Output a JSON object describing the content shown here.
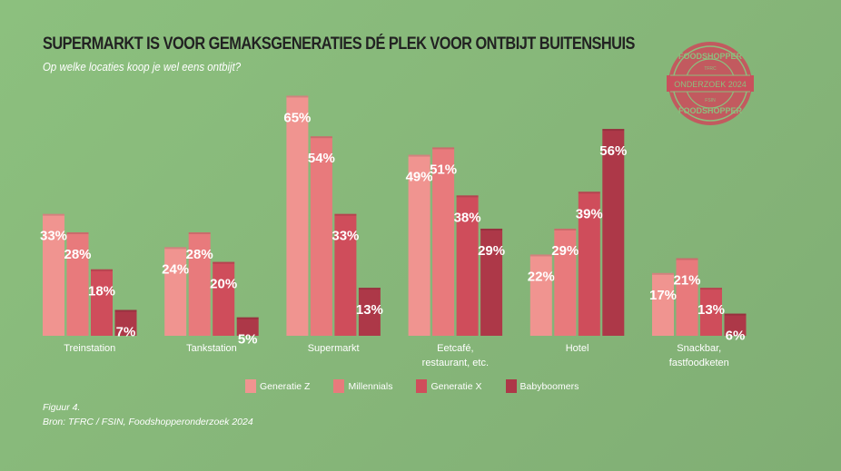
{
  "header": {
    "title": "SUPERMARKT IS VOOR GEMAKSGENERATIES DÉ PLEK VOOR ONTBIJT BUITENSHUIS",
    "subtitle": "Op welke locaties koop je wel eens ontbijt?"
  },
  "stamp": {
    "top": "FOODSHOPPER",
    "small_top": "TFRC",
    "middle": "ONDERZOEK 2024",
    "small_bottom": "FSIN",
    "bottom": "FOODSHOPPER"
  },
  "chart_data": {
    "type": "bar",
    "title": "SUPERMARKT IS VOOR GEMAKSGENERATIES DÉ PLEK VOOR ONTBIJT BUITENSHUIS",
    "categories": [
      [
        "Treinstation"
      ],
      [
        "Tankstation"
      ],
      [
        "Supermarkt"
      ],
      [
        "Eetcafé,",
        "restaurant, etc."
      ],
      [
        "Hotel"
      ],
      [
        "Snackbar,",
        "fastfoodketen"
      ]
    ],
    "series": [
      {
        "name": "Generatie Z",
        "color": "#f09490",
        "values": [
          33,
          24,
          65,
          49,
          22,
          17
        ]
      },
      {
        "name": "Millennials",
        "color": "#e87a7c",
        "values": [
          28,
          28,
          54,
          51,
          29,
          21
        ]
      },
      {
        "name": "Generatie X",
        "color": "#cf4d5b",
        "values": [
          18,
          20,
          33,
          38,
          39,
          13
        ]
      },
      {
        "name": "Babyboomers",
        "color": "#ad3848",
        "values": [
          7,
          5,
          13,
          29,
          56,
          6
        ]
      }
    ],
    "value_suffix": "%",
    "ylim": [
      0,
      65
    ],
    "legend": "bottom-center"
  },
  "footer": {
    "figure": "Figuur 4.",
    "source": "Bron: TFRC / FSIN, Foodshopperonderzoek 2024"
  }
}
